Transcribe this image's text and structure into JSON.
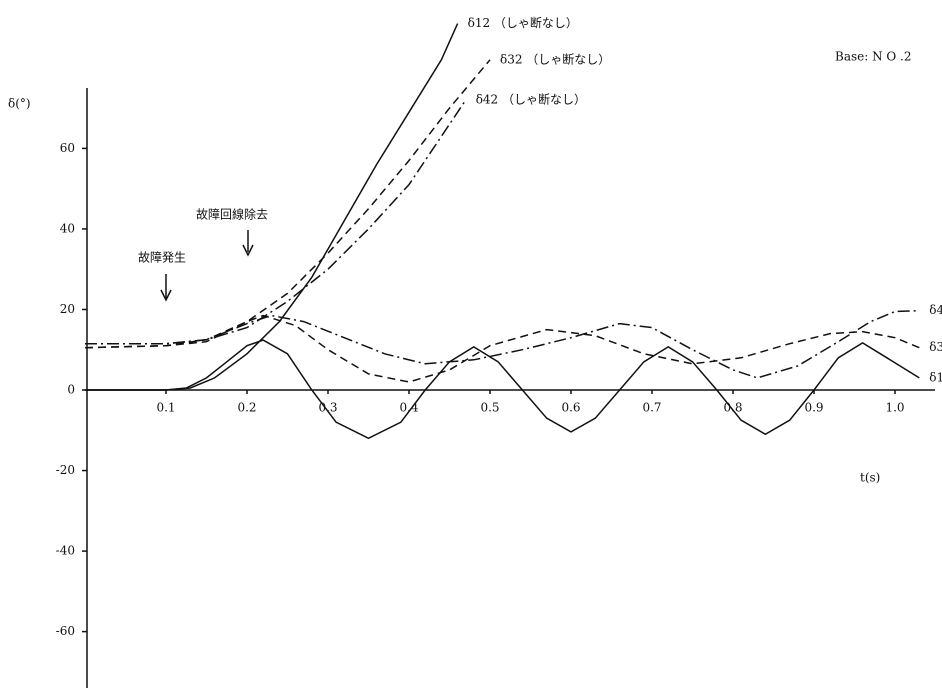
{
  "chart_data": {
    "type": "line",
    "title": "Base: N O .2",
    "y_label": "δ(°)",
    "x_label": "t(s)",
    "annotations": [
      "故障発生",
      "故障回線除去"
    ],
    "xlim": [
      0,
      1.05
    ],
    "ylim": [
      -74,
      75
    ],
    "xticks": [
      0.1,
      0.2,
      0.3,
      0.4,
      0.5,
      0.6,
      0.7,
      0.8,
      0.9,
      {
        "value": 1,
        "label": "1.0"
      }
    ],
    "yticks": [
      -60,
      -40,
      -20,
      0,
      20,
      40,
      60
    ],
    "series": [
      {
        "name": "δ12 （しゃ断なし）",
        "color": "#111",
        "dash": "solid",
        "x": [
          0,
          0.1,
          0.13,
          0.16,
          0.2,
          0.24,
          0.28,
          0.32,
          0.36,
          0.4,
          0.44,
          0.46
        ],
        "values": [
          0,
          0,
          0.5,
          3,
          9,
          17,
          28,
          42,
          56,
          69,
          82,
          91
        ]
      },
      {
        "name": "δ32 （しゃ断なし）",
        "color": "#111",
        "dash": "dashed",
        "x": [
          0,
          0.1,
          0.15,
          0.2,
          0.25,
          0.3,
          0.35,
          0.4,
          0.45,
          0.5
        ],
        "values": [
          10.5,
          11,
          12.5,
          17,
          24,
          34,
          45,
          57,
          70,
          82
        ]
      },
      {
        "name": "δ42 （しゃ断なし）",
        "color": "#111",
        "dash": "dashdot",
        "x": [
          0,
          0.1,
          0.15,
          0.2,
          0.25,
          0.3,
          0.35,
          0.4,
          0.47
        ],
        "values": [
          11.5,
          11.5,
          12.5,
          15.5,
          22,
          30,
          40,
          51,
          72
        ]
      },
      {
        "name": "δ42",
        "color": "#111",
        "dash": "dashdot",
        "x": [
          0,
          0.1,
          0.15,
          0.2,
          0.23,
          0.27,
          0.32,
          0.37,
          0.42,
          0.48,
          0.54,
          0.6,
          0.66,
          0.7,
          0.75,
          0.8,
          0.83,
          0.88,
          0.93,
          0.97,
          1.0,
          1.03
        ],
        "values": [
          11.5,
          11.5,
          12.5,
          16.5,
          18.5,
          17,
          13,
          9,
          6.5,
          7.5,
          10,
          13,
          16.5,
          15.5,
          10,
          5,
          3,
          6,
          12,
          17,
          19.5,
          19.7
        ]
      },
      {
        "name": "δ32",
        "color": "#111",
        "dash": "dashed",
        "x": [
          0,
          0.1,
          0.15,
          0.2,
          0.22,
          0.26,
          0.3,
          0.35,
          0.4,
          0.45,
          0.5,
          0.57,
          0.63,
          0.69,
          0.75,
          0.81,
          0.87,
          0.92,
          0.96,
          1.0,
          1.03
        ],
        "values": [
          10.5,
          11,
          12,
          17,
          18.5,
          16,
          10,
          4,
          2,
          5,
          11,
          15,
          13.5,
          9,
          6.5,
          8,
          11.5,
          14,
          14.5,
          13,
          10.5
        ]
      },
      {
        "name": "δ12",
        "color": "#111",
        "dash": "solid",
        "x": [
          0,
          0.05,
          0.1,
          0.125,
          0.15,
          0.175,
          0.2,
          0.22,
          0.25,
          0.28,
          0.31,
          0.35,
          0.39,
          0.42,
          0.45,
          0.48,
          0.51,
          0.54,
          0.57,
          0.6,
          0.63,
          0.66,
          0.69,
          0.72,
          0.75,
          0.78,
          0.81,
          0.84,
          0.87,
          0.9,
          0.93,
          0.96,
          0.99,
          1.03
        ],
        "values": [
          0,
          0,
          0,
          0.5,
          3,
          7,
          11,
          12.4,
          9,
          0,
          -8,
          -12,
          -8,
          0,
          7,
          10.7,
          7,
          0,
          -7,
          -10.4,
          -7,
          0,
          7,
          10.7,
          7,
          0,
          -7.5,
          -11,
          -7.5,
          0,
          8,
          11.7,
          8,
          3
        ]
      }
    ]
  }
}
